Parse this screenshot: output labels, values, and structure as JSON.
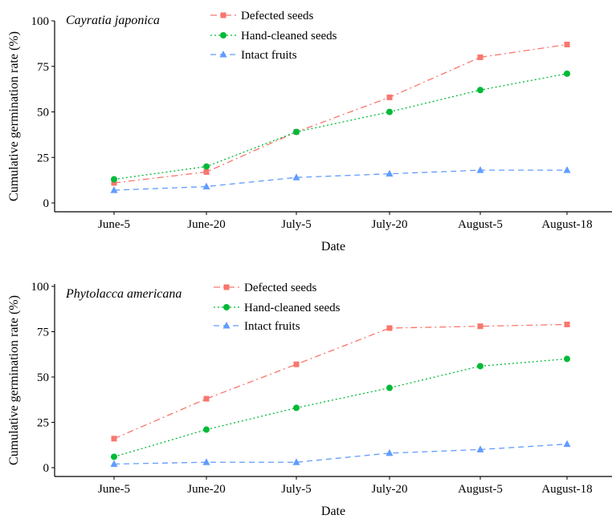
{
  "chart_data": [
    {
      "type": "line",
      "title": "Cayratia japonica",
      "xlabel": "Date",
      "ylabel": "Cumulative germination rate (%)",
      "categories": [
        "June-5",
        "June-20",
        "July-5",
        "July-20",
        "August-5",
        "August-18"
      ],
      "ylim": [
        0,
        100
      ],
      "yticks": [
        0,
        25,
        50,
        75,
        100
      ],
      "grid": false,
      "legend_position": "top",
      "series": [
        {
          "name": "Defected seeds",
          "color": "#F8766D",
          "marker": "square",
          "dash": "dashdot",
          "values": [
            11,
            17,
            39,
            58,
            80,
            87
          ]
        },
        {
          "name": "Hand-cleaned seeds",
          "color": "#00BA38",
          "marker": "circle",
          "dash": "dotted",
          "values": [
            13,
            20,
            39,
            50,
            62,
            71
          ]
        },
        {
          "name": "Intact fruits",
          "color": "#619CFF",
          "marker": "triangle",
          "dash": "dashed",
          "values": [
            7,
            9,
            14,
            16,
            18,
            18
          ]
        }
      ]
    },
    {
      "type": "line",
      "title": "Phytolacca americana",
      "xlabel": "Date",
      "ylabel": "Cumulative germination rate (%)",
      "categories": [
        "June-5",
        "June-20",
        "July-5",
        "July-20",
        "August-5",
        "August-18"
      ],
      "ylim": [
        0,
        100
      ],
      "yticks": [
        0,
        25,
        50,
        75,
        100
      ],
      "grid": false,
      "legend_position": "top",
      "series": [
        {
          "name": "Defected seeds",
          "color": "#F8766D",
          "marker": "square",
          "dash": "dashdot",
          "values": [
            16,
            38,
            57,
            77,
            78,
            79
          ]
        },
        {
          "name": "Hand-cleaned seeds",
          "color": "#00BA38",
          "marker": "circle",
          "dash": "dotted",
          "values": [
            6,
            21,
            33,
            44,
            56,
            60
          ]
        },
        {
          "name": "Intact fruits",
          "color": "#619CFF",
          "marker": "triangle",
          "dash": "dashed",
          "values": [
            2,
            3,
            3,
            8,
            10,
            13
          ]
        }
      ]
    }
  ]
}
